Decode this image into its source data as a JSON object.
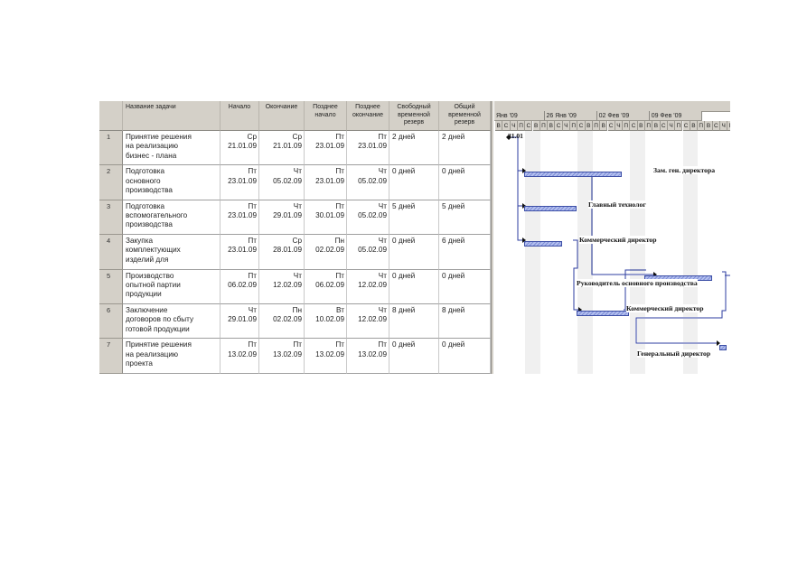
{
  "table": {
    "headers": {
      "name": "Название задачи",
      "start": "Начало",
      "finish": "Окончание",
      "late_start": "Позднее начало",
      "late_finish": "Позднее окончание",
      "free_slack": "Свободный временной резерв",
      "total_slack": "Общий временной резерв"
    },
    "rows": [
      {
        "id": "1",
        "name": [
          "Принятие решения",
          "на реализацию",
          "бизнес - плана"
        ],
        "start": [
          "Ср",
          "21.01.09"
        ],
        "finish": [
          "Ср",
          "21.01.09"
        ],
        "late_start": [
          "Пт",
          "23.01.09"
        ],
        "late_finish": [
          "Пт",
          "23.01.09"
        ],
        "free_slack": "2 дней",
        "total_slack": "2 дней"
      },
      {
        "id": "2",
        "name": [
          "Подготовка",
          "основного",
          "производства"
        ],
        "start": [
          "Пт",
          "23.01.09"
        ],
        "finish": [
          "Чт",
          "05.02.09"
        ],
        "late_start": [
          "Пт",
          "23.01.09"
        ],
        "late_finish": [
          "Чт",
          "05.02.09"
        ],
        "free_slack": "0 дней",
        "total_slack": "0 дней"
      },
      {
        "id": "3",
        "name": [
          "Подготовка",
          "вспомогательного",
          "производства"
        ],
        "start": [
          "Пт",
          "23.01.09"
        ],
        "finish": [
          "Чт",
          "29.01.09"
        ],
        "late_start": [
          "Пт",
          "30.01.09"
        ],
        "late_finish": [
          "Чт",
          "05.02.09"
        ],
        "free_slack": "5 дней",
        "total_slack": "5 дней"
      },
      {
        "id": "4",
        "name": [
          "Закупка",
          "комплектующих",
          "изделий для"
        ],
        "start": [
          "Пт",
          "23.01.09"
        ],
        "finish": [
          "Ср",
          "28.01.09"
        ],
        "late_start": [
          "Пн",
          "02.02.09"
        ],
        "late_finish": [
          "Чт",
          "05.02.09"
        ],
        "free_slack": "0 дней",
        "total_slack": "6 дней"
      },
      {
        "id": "5",
        "name": [
          "Производство",
          "опытной партии",
          "продукции"
        ],
        "start": [
          "Пт",
          "06.02.09"
        ],
        "finish": [
          "Чт",
          "12.02.09"
        ],
        "late_start": [
          "Пт",
          "06.02.09"
        ],
        "late_finish": [
          "Чт",
          "12.02.09"
        ],
        "free_slack": "0 дней",
        "total_slack": "0 дней"
      },
      {
        "id": "6",
        "name": [
          "Заключение",
          "договоров по сбыту",
          "готовой продукции"
        ],
        "start": [
          "Чт",
          "29.01.09"
        ],
        "finish": [
          "Пн",
          "02.02.09"
        ],
        "late_start": [
          "Вт",
          "10.02.09"
        ],
        "late_finish": [
          "Чт",
          "12.02.09"
        ],
        "free_slack": "8 дней",
        "total_slack": "8 дней"
      },
      {
        "id": "7",
        "name": [
          "Принятие решения",
          "на реализацию",
          "проекта"
        ],
        "start": [
          "Пт",
          "13.02.09"
        ],
        "finish": [
          "Пт",
          "13.02.09"
        ],
        "late_start": [
          "Пт",
          "13.02.09"
        ],
        "late_finish": [
          "Пт",
          "13.02.09"
        ],
        "free_slack": "0 дней",
        "total_slack": "0 дней"
      }
    ]
  },
  "timescale": {
    "weeks": [
      "Янв '09",
      "26 Янв '09",
      "02 Фев '09",
      "09 Фев '09"
    ],
    "days": [
      "В",
      "С",
      "Ч",
      "П",
      "С",
      "В",
      "П",
      "В",
      "С",
      "Ч",
      "П",
      "С",
      "В",
      "П",
      "В",
      "С",
      "Ч",
      "П",
      "С",
      "В",
      "П",
      "В",
      "С",
      "Ч",
      "П",
      "С",
      "В",
      "П",
      "В",
      "С",
      "Ч",
      "П",
      "С"
    ]
  },
  "gantt": {
    "milestone_label": "21.01",
    "resources": {
      "r2": "Зам. ген. директора",
      "r3": "Главный технолог",
      "r4": "Коммерческий директор",
      "r5": "Руководитель основного производства",
      "r6": "Коммерческий директор",
      "r7": "Генеральный директор"
    },
    "bars": [
      {
        "task": "2",
        "start_day": 4,
        "duration_days": 13
      },
      {
        "task": "3",
        "start_day": 4,
        "duration_days": 7
      },
      {
        "task": "4",
        "start_day": 4,
        "duration_days": 5
      },
      {
        "task": "5",
        "start_day": 20,
        "duration_days": 9
      },
      {
        "task": "6",
        "start_day": 11,
        "duration_days": 7
      },
      {
        "task": "7",
        "start_day": 30,
        "duration_days": 1
      }
    ]
  }
}
